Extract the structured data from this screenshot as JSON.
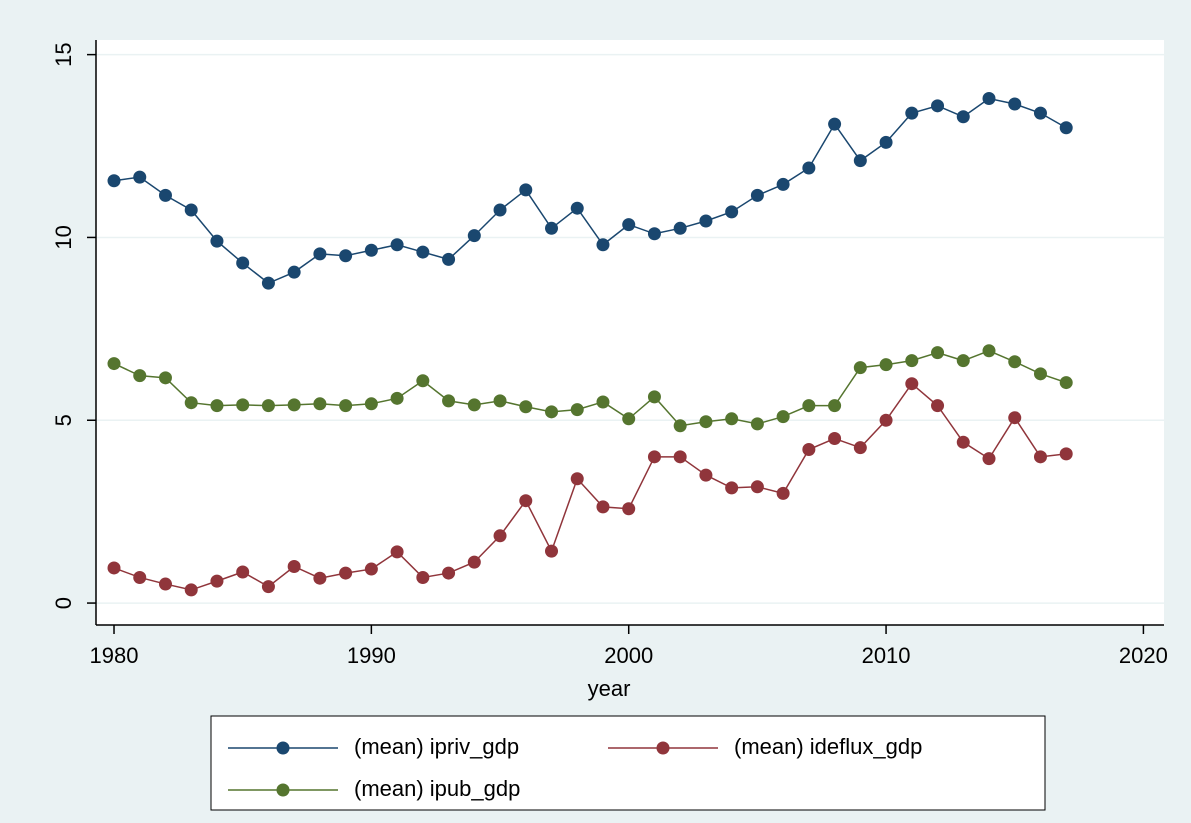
{
  "chart_data": {
    "type": "line",
    "x_label": "year",
    "x": [
      1980,
      1981,
      1982,
      1983,
      1984,
      1985,
      1986,
      1987,
      1988,
      1989,
      1990,
      1991,
      1992,
      1993,
      1994,
      1995,
      1996,
      1997,
      1998,
      1999,
      2000,
      2001,
      2002,
      2003,
      2004,
      2005,
      2006,
      2007,
      2008,
      2009,
      2010,
      2011,
      2012,
      2013,
      2014,
      2015,
      2016,
      2017
    ],
    "series": [
      {
        "name": "(mean) ipriv_gdp",
        "color": "#1a476f",
        "values": [
          11.55,
          11.65,
          11.15,
          10.75,
          9.9,
          9.3,
          8.75,
          9.05,
          9.55,
          9.5,
          9.65,
          9.8,
          9.6,
          9.4,
          10.05,
          10.75,
          11.3,
          10.25,
          10.8,
          9.8,
          10.35,
          10.1,
          10.25,
          10.45,
          10.7,
          11.15,
          11.45,
          11.9,
          13.1,
          12.1,
          12.6,
          13.4,
          13.6,
          13.3,
          13.8,
          13.65,
          13.4,
          13.0
        ]
      },
      {
        "name": "(mean) ideflux_gdp",
        "color": "#90353b",
        "values": [
          0.96,
          0.7,
          0.52,
          0.36,
          0.6,
          0.85,
          0.45,
          1.0,
          0.68,
          0.82,
          0.93,
          1.4,
          0.7,
          0.82,
          1.12,
          1.84,
          2.8,
          1.42,
          3.4,
          2.63,
          2.58,
          4.0,
          4.0,
          3.5,
          3.15,
          3.18,
          3.0,
          4.2,
          4.5,
          4.25,
          5.0,
          6.0,
          5.4,
          4.4,
          3.95,
          5.07,
          4.0,
          4.08
        ]
      },
      {
        "name": "(mean) ipub_gdp",
        "color": "#55752f",
        "values": [
          6.55,
          6.22,
          6.16,
          5.48,
          5.4,
          5.42,
          5.4,
          5.42,
          5.45,
          5.4,
          5.45,
          5.6,
          6.08,
          5.53,
          5.42,
          5.53,
          5.37,
          5.23,
          5.29,
          5.5,
          5.04,
          5.64,
          4.85,
          4.96,
          5.04,
          4.9,
          5.1,
          5.4,
          5.4,
          6.44,
          6.52,
          6.63,
          6.85,
          6.63,
          6.9,
          6.6,
          6.27,
          6.03
        ]
      }
    ],
    "xlim": [
      1979.3,
      2020.8
    ],
    "xticks": [
      1980,
      1990,
      2000,
      2010,
      2020
    ],
    "ylim": [
      -0.6,
      15.4
    ],
    "yticks": [
      0,
      5,
      10,
      15
    ],
    "grid": true,
    "legend": "bottom"
  }
}
